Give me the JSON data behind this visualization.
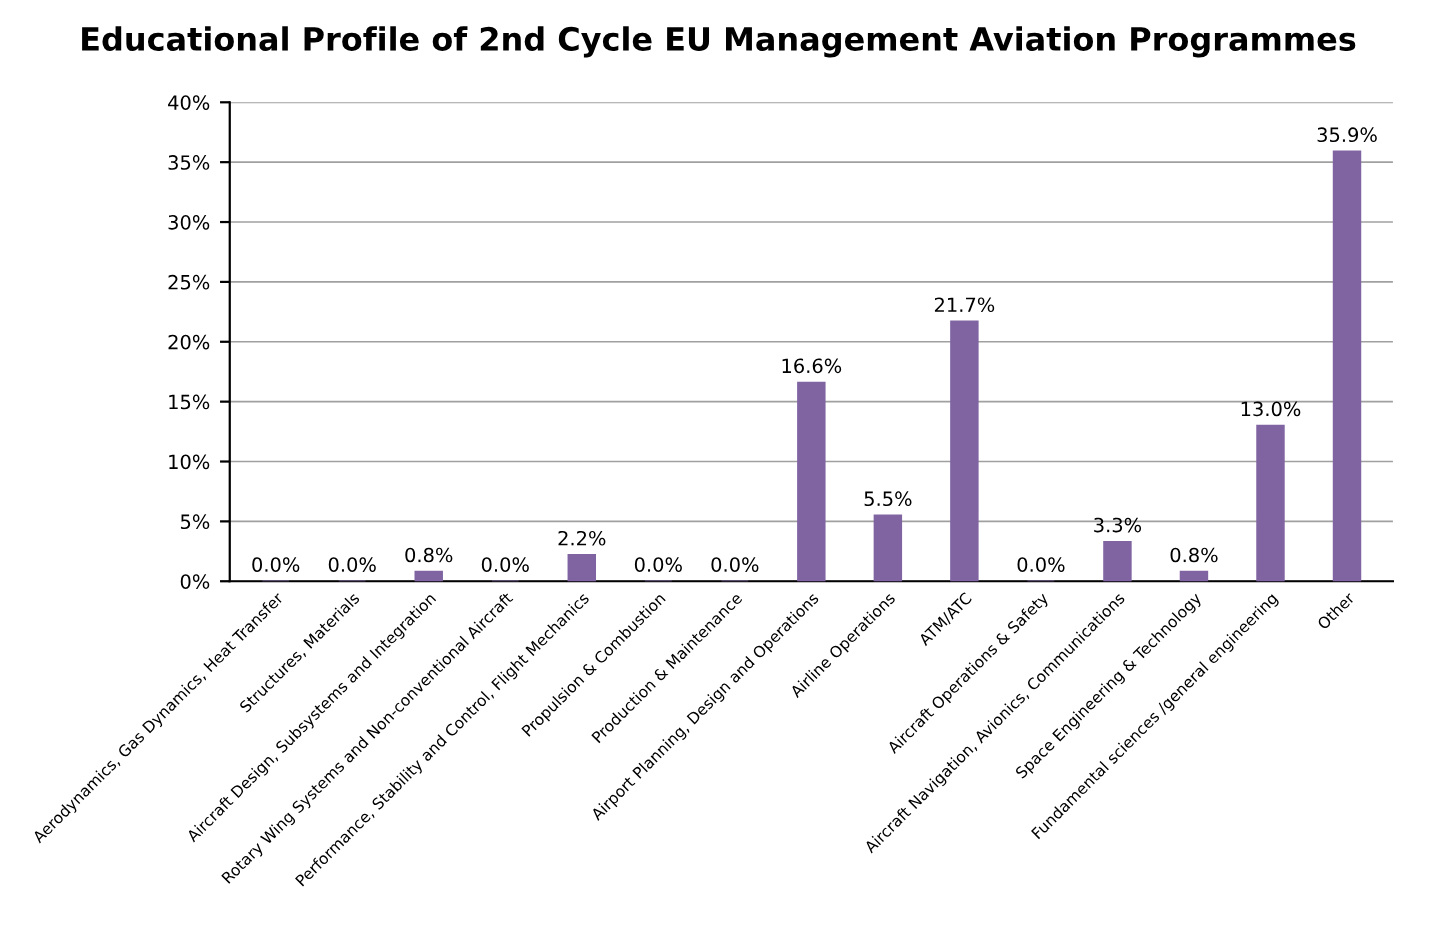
{
  "chart_data": {
    "type": "bar",
    "title": "Educational Profile of 2nd Cycle EU Management Aviation Programmes",
    "categories": [
      "Aerodynamics, Gas Dynamics, Heat Transfer",
      "Structures, Materials",
      "Aircraft Design, Subsystems and Integration",
      "Rotary Wing Systems and Non-conventional Aircraft",
      "Performance, Stability and Control, Flight Mechanics",
      "Propulsion & Combustion",
      "Production & Maintenance",
      "Airport Planning, Design and Operations",
      "Airline Operations",
      "ATM/ATC",
      "Aircraft Operations & Safety",
      "Aircraft Navigation, Avionics, Communications",
      "Space Engineering & Technology",
      "Fundamental sciences /general engineering",
      "Other"
    ],
    "values": [
      0.0,
      0.0,
      0.8,
      0.0,
      2.2,
      0.0,
      0.0,
      16.6,
      5.5,
      21.7,
      0.0,
      3.3,
      0.8,
      13.0,
      35.9
    ],
    "value_labels": [
      "0.0%",
      "0.0%",
      "0.8%",
      "0.0%",
      "2.2%",
      "0.0%",
      "0.0%",
      "16.6%",
      "5.5%",
      "21.7%",
      "0.0%",
      "3.3%",
      "0.8%",
      "13.0%",
      "35.9%"
    ],
    "color": "#8064a2",
    "ylim": [
      0,
      40
    ],
    "yticks": [
      {
        "value": 0,
        "label": "0%"
      },
      {
        "value": 5,
        "label": "5%"
      },
      {
        "value": 10,
        "label": "10%"
      },
      {
        "value": 15,
        "label": "15%"
      },
      {
        "value": 20,
        "label": "20%"
      },
      {
        "value": 25,
        "label": "25%"
      },
      {
        "value": 30,
        "label": "30%"
      },
      {
        "value": 35,
        "label": "35%"
      },
      {
        "value": 40,
        "label": "40%"
      }
    ],
    "grid": "y",
    "legend": false
  }
}
